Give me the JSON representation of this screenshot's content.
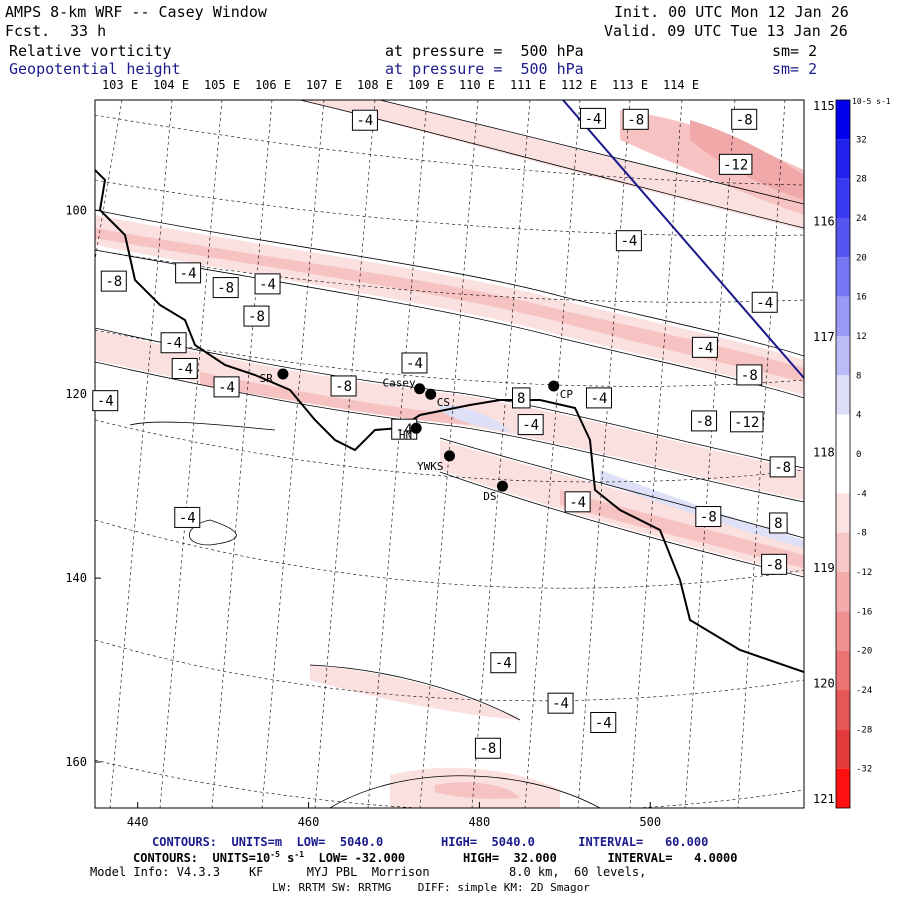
{
  "header": {
    "model_title": "AMPS 8-km WRF -- Casey Window",
    "fcst_label": "Fcst.",
    "fcst_value": "33 h",
    "init": "Init. 00 UTC Mon 12 Jan 26",
    "valid": "Valid. 09 UTC Tue 13 Jan 26",
    "field1_name": "Relative vorticity",
    "field1_level": "at pressure =  500 hPa",
    "field1_sm": "sm= 2",
    "field2_name": "Geopotential height",
    "field2_level": "at pressure =  500 hPa",
    "field2_sm": "sm= 2"
  },
  "chart_data": {
    "type": "contour-map",
    "x_ticks": [
      440,
      460,
      480,
      500
    ],
    "y_ticks": [
      100,
      120,
      140,
      160
    ],
    "xlim": [
      435,
      518
    ],
    "ylim": [
      88,
      165
    ],
    "lon_labels": [
      "103 E",
      "104 E",
      "105 E",
      "106 E",
      "107 E",
      "108 E",
      "109 E",
      "110 E",
      "111 E",
      "112 E",
      "113 E",
      "114 E"
    ],
    "lat_labels": [
      "115 E",
      "116 E",
      "117 E",
      "118 E",
      "119 E",
      "120 E",
      "121 E"
    ],
    "stations": [
      {
        "name": "SR",
        "x": 457.0,
        "y": 117.8
      },
      {
        "name": "Casey",
        "x": 473.0,
        "y": 119.4
      },
      {
        "name": "CS",
        "x": 474.3,
        "y": 120.0
      },
      {
        "name": "CP",
        "x": 488.7,
        "y": 119.1
      },
      {
        "name": "HN",
        "x": 472.6,
        "y": 123.7
      },
      {
        "name": "YWKS",
        "x": 476.5,
        "y": 126.7
      },
      {
        "name": "DS",
        "x": 482.7,
        "y": 130.0
      }
    ],
    "contour_labels": [
      {
        "t": "-4",
        "x": 436.2,
        "y": 120.7
      },
      {
        "t": "-8",
        "x": 437.2,
        "y": 107.7
      },
      {
        "t": "-4",
        "x": 445.9,
        "y": 106.8
      },
      {
        "t": "-8",
        "x": 450.3,
        "y": 108.4
      },
      {
        "t": "-4",
        "x": 455.2,
        "y": 108.0
      },
      {
        "t": "-8",
        "x": 453.9,
        "y": 111.5
      },
      {
        "t": "-4",
        "x": 444.2,
        "y": 114.4
      },
      {
        "t": "-4",
        "x": 445.5,
        "y": 117.2
      },
      {
        "t": "-4",
        "x": 450.4,
        "y": 119.2
      },
      {
        "t": "-8",
        "x": 464.1,
        "y": 119.1
      },
      {
        "t": "-4",
        "x": 466.6,
        "y": 90.2
      },
      {
        "t": "-4",
        "x": 472.4,
        "y": 116.6
      },
      {
        "t": "8",
        "x": 484.9,
        "y": 120.4
      },
      {
        "t": "-4",
        "x": 486.0,
        "y": 123.3
      },
      {
        "t": "-4",
        "x": 471.2,
        "y": 123.8
      },
      {
        "t": "-4",
        "x": 445.8,
        "y": 133.4
      },
      {
        "t": "-4",
        "x": 493.3,
        "y": 90.0
      },
      {
        "t": "-8",
        "x": 498.3,
        "y": 90.1
      },
      {
        "t": "-8",
        "x": 511.0,
        "y": 90.1
      },
      {
        "t": "-12",
        "x": 510.0,
        "y": 95.0
      },
      {
        "t": "-4",
        "x": 497.5,
        "y": 103.3
      },
      {
        "t": "-4",
        "x": 513.4,
        "y": 110.0
      },
      {
        "t": "-4",
        "x": 506.4,
        "y": 114.9
      },
      {
        "t": "-8",
        "x": 511.6,
        "y": 117.9
      },
      {
        "t": "-4",
        "x": 494.0,
        "y": 120.4
      },
      {
        "t": "-8",
        "x": 506.3,
        "y": 122.9
      },
      {
        "t": "-12",
        "x": 511.3,
        "y": 123.0
      },
      {
        "t": "-8",
        "x": 515.5,
        "y": 127.9
      },
      {
        "t": "-4",
        "x": 491.5,
        "y": 131.7
      },
      {
        "t": "-8",
        "x": 506.8,
        "y": 133.3
      },
      {
        "t": "8",
        "x": 515.0,
        "y": 134.0
      },
      {
        "t": "-8",
        "x": 514.5,
        "y": 138.5
      },
      {
        "t": "-4",
        "x": 482.8,
        "y": 149.2
      },
      {
        "t": "-4",
        "x": 489.5,
        "y": 153.6
      },
      {
        "t": "-4",
        "x": 494.5,
        "y": 155.7
      },
      {
        "t": "-8",
        "x": 481.0,
        "y": 158.5
      }
    ],
    "colorbar": {
      "units": "10-5 s-1",
      "labels": [
        32,
        28,
        24,
        20,
        16,
        12,
        8,
        4,
        0,
        -4,
        -8,
        -12,
        -16,
        -20,
        -24,
        -28,
        -32
      ],
      "colors": [
        "#0000ee",
        "#2222ee",
        "#3a3af0",
        "#5555f2",
        "#7777f4",
        "#9999f6",
        "#bbbbf8",
        "#ddddfa",
        "#ffffff",
        "#ffffff",
        "#fbe3e3",
        "#f7c7c7",
        "#f3abab",
        "#ef8f8f",
        "#eb7373",
        "#e75757",
        "#e33b3b",
        "#ff1010"
      ]
    }
  },
  "footer": {
    "contours1": "CONTOURS:  UNITS=m  LOW=  5040.0        HIGH=  5040.0      INTERVAL=   60.000",
    "contours2_a": "CONTOURS:  UNITS=10",
    "contours2_b": "-5",
    "contours2_c": " s",
    "contours2_d": "-1",
    "contours2_e": "  LOW= -32.000        HIGH=  32.000       INTERVAL=   4.0000",
    "model_info": "Model Info: V4.3.3    KF      MYJ PBL  Morrison           8.0 km,  60 levels,",
    "model_info2": "LW: RRTM SW: RRTMG    DIFF: simple KM: 2D Smagor"
  }
}
